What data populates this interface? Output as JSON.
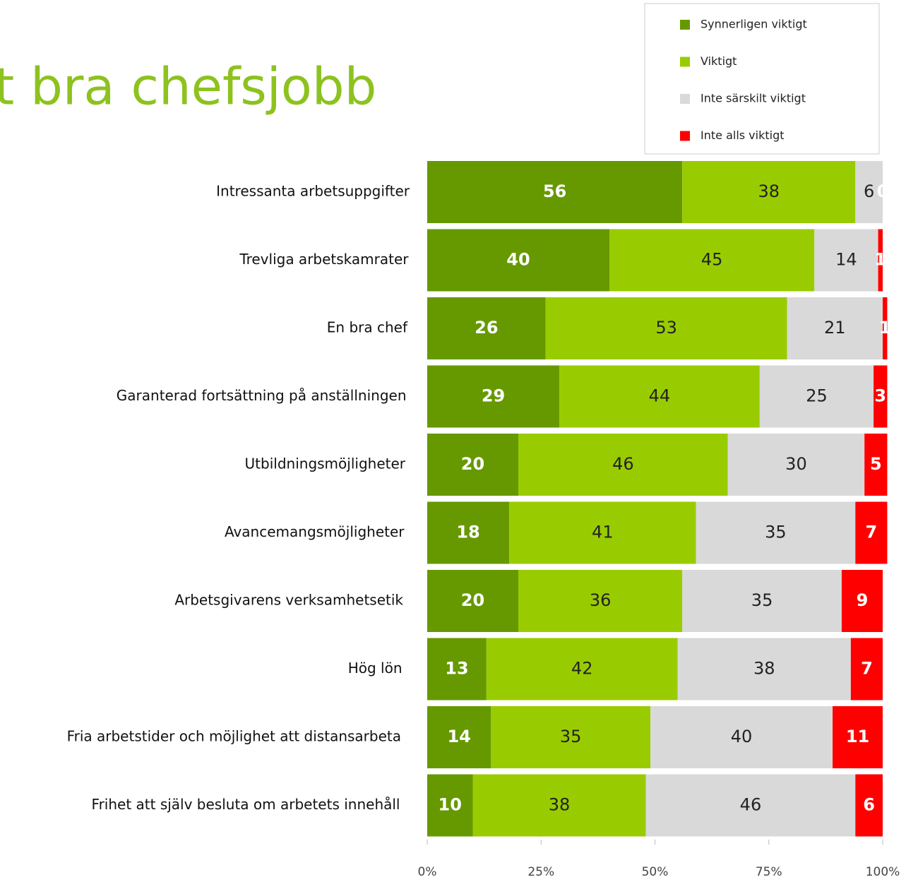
{
  "chart_data": {
    "type": "stacked-barh",
    "title": "t bra chefsjobb",
    "categories": [
      "Intressanta arbetsuppgifter",
      "Trevliga arbetskamrater",
      "En bra chef",
      "Garanterad fortsättning på anställningen",
      "Utbildningsmöjligheter",
      "Avancemangsmöjligheter",
      "Arbetsgivarens verksamhetsetik",
      "Hög lön",
      "Fria arbetstider och möjlighet att distansarbeta",
      "Frihet att själv besluta om arbetets innehåll"
    ],
    "series": [
      {
        "name": "Synnerligen viktigt",
        "color": "#669900",
        "values": [
          56,
          40,
          26,
          29,
          20,
          18,
          20,
          13,
          14,
          10
        ]
      },
      {
        "name": "Viktigt",
        "color": "#99cc00",
        "values": [
          38,
          45,
          53,
          44,
          46,
          41,
          36,
          42,
          35,
          38
        ]
      },
      {
        "name": "Inte särskilt viktigt",
        "color": "#d9d9d9",
        "values": [
          6,
          14,
          21,
          25,
          30,
          35,
          35,
          38,
          40,
          46
        ]
      },
      {
        "name": "Inte alls viktigt",
        "color": "#ff0000",
        "values": [
          0,
          1,
          1,
          3,
          5,
          7,
          9,
          7,
          11,
          6
        ]
      }
    ],
    "xlim": [
      0,
      100
    ],
    "xticks": [
      {
        "value": 0,
        "label": "0%"
      },
      {
        "value": 25,
        "label": "25%"
      },
      {
        "value": 50,
        "label": "50%"
      },
      {
        "value": 75,
        "label": "75%"
      },
      {
        "value": 100,
        "label": "100%"
      }
    ]
  }
}
